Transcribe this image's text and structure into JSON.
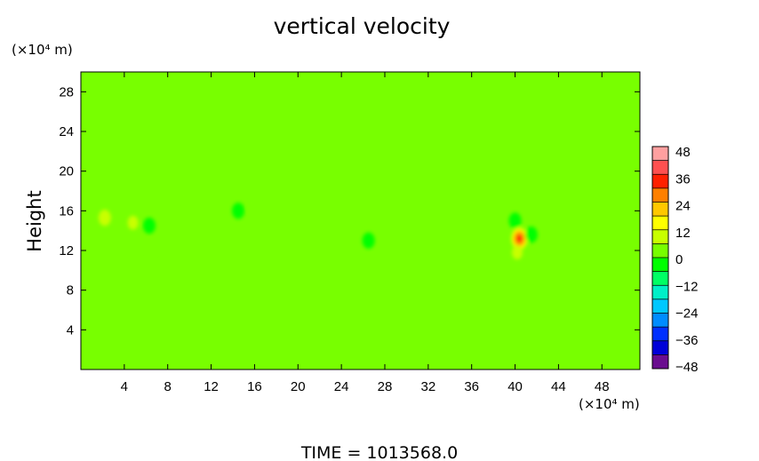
{
  "chart_data": {
    "type": "heatmap",
    "title": "vertical velocity",
    "ylabel": "Height",
    "y_unit_label": "(×10⁴ m)",
    "x_unit_label": "(×10⁴ m)",
    "xlabel": "",
    "xlim": [
      0,
      51.5
    ],
    "ylim": [
      0,
      30
    ],
    "x_ticks": [
      4,
      8,
      12,
      16,
      20,
      24,
      28,
      32,
      36,
      40,
      44,
      48
    ],
    "y_ticks": [
      4,
      8,
      12,
      16,
      20,
      24,
      28
    ],
    "colorbar": {
      "ticks": [
        48,
        36,
        24,
        12,
        0,
        -12,
        -24,
        -36,
        -48
      ],
      "range": [
        -48,
        48
      ],
      "colors": [
        "#6a0d8f",
        "#0000d8",
        "#0030ff",
        "#008cff",
        "#00c8ff",
        "#00f0c8",
        "#00ff64",
        "#00ff00",
        "#78ff00",
        "#c8ff00",
        "#ffff00",
        "#ffc800",
        "#ff8000",
        "#ff2000",
        "#ff5050",
        "#ffa0a0"
      ]
    },
    "background_value": 0,
    "features": [
      {
        "x": 40.4,
        "y": 13.2,
        "value": 30
      },
      {
        "x": 40.2,
        "y": 11.8,
        "value": 10
      },
      {
        "x": 4.8,
        "y": 14.8,
        "value": 10
      },
      {
        "x": 2.2,
        "y": 15.3,
        "value": 8
      },
      {
        "x": 6.5,
        "y": 12.3,
        "value": 5
      },
      {
        "x": 6.3,
        "y": 14.5,
        "value": -5
      },
      {
        "x": 16.0,
        "y": 16.3,
        "value": 5
      },
      {
        "x": 50.0,
        "y": 14.0,
        "value": 5
      },
      {
        "x": 36.0,
        "y": 16.4,
        "value": 5
      },
      {
        "x": 8.6,
        "y": 17.5,
        "value": 5
      },
      {
        "x": 14.5,
        "y": 16.0,
        "value": -4
      },
      {
        "x": 26.5,
        "y": 13.0,
        "value": -4
      },
      {
        "x": 40.0,
        "y": 15.0,
        "value": -5
      },
      {
        "x": 41.5,
        "y": 13.6,
        "value": -4
      }
    ],
    "time_label": "TIME = 1013568.0"
  }
}
